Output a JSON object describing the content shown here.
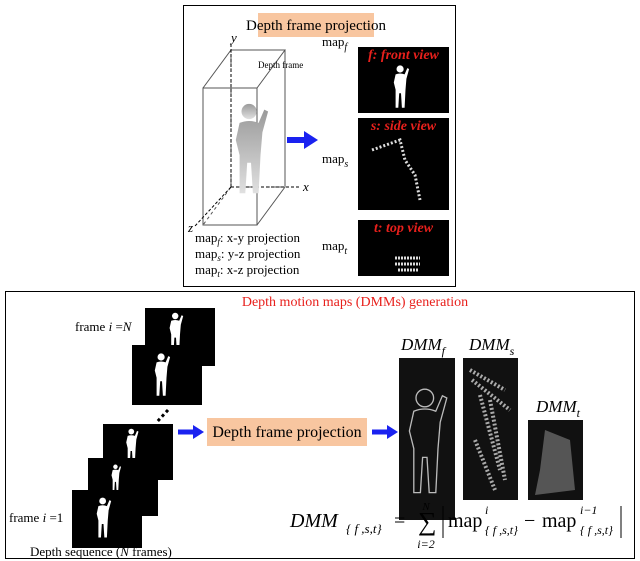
{
  "top_panel": {
    "title": "Depth frame projection",
    "depth_frame_label": "Depth frame",
    "axes": {
      "x": "x",
      "y": "y",
      "z": "z"
    },
    "views": [
      {
        "label": "f: front view",
        "map": "map",
        "sub": "f"
      },
      {
        "label": "s: side view",
        "map": "map",
        "sub": "s"
      },
      {
        "label": "t: top view",
        "map": "map",
        "sub": "t"
      }
    ],
    "projections": [
      {
        "map": "map",
        "sub": "f",
        "text": ": x-y  projection"
      },
      {
        "map": "map",
        "sub": "s",
        "text": ": y-z  projection"
      },
      {
        "map": "map",
        "sub": "t",
        "text": ": x-z  projection"
      }
    ]
  },
  "bottom_panel": {
    "title": "Depth motion maps (DMMs) generation",
    "frame_last": {
      "text": "frame ",
      "var": "i",
      "eq": " =",
      "n": "N"
    },
    "frame_first": {
      "text": "frame ",
      "var": "i",
      "eq": " =1"
    },
    "sequence": {
      "text": "Depth sequence (",
      "var": "N",
      "rest": " frames)"
    },
    "projection_box": "Depth frame projection",
    "dmms": [
      {
        "name": "DMM",
        "sub": "f"
      },
      {
        "name": "DMM",
        "sub": "s"
      },
      {
        "name": "DMM",
        "sub": "t"
      }
    ],
    "formula": {
      "lhs": "DMM",
      "lhs_sub": "{ f ,s,t}",
      "equals": "=",
      "sum": "∑",
      "lower": "i=2",
      "upper": "N",
      "term1": "map",
      "term1_sup": "i",
      "term1_sub": "{ f ,s,t}",
      "minus": "−",
      "term2": "map",
      "term2_sup": "i−1",
      "term2_sub": "{ f ,s,t}"
    }
  }
}
